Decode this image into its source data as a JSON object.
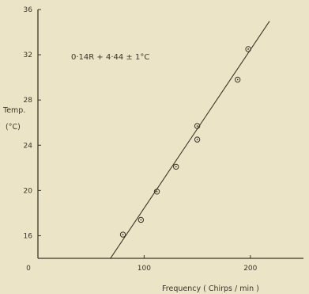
{
  "chart_data": {
    "type": "scatter",
    "xlabel": "Frequency   ( Chirps / min )",
    "ylabel": [
      "Temp.",
      "(°C)"
    ],
    "annotation": "0·14R + 4·44  ±  1°C",
    "x_ticks": [
      "0",
      "100",
      "200"
    ],
    "y_ticks": [
      "16",
      "20",
      "24",
      "28",
      "32",
      "36"
    ],
    "xlim": [
      0,
      250
    ],
    "ylim": [
      14,
      36
    ],
    "grid": false,
    "points": [
      {
        "x": 80,
        "y": 16.1
      },
      {
        "x": 97,
        "y": 17.4
      },
      {
        "x": 112,
        "y": 19.9
      },
      {
        "x": 130,
        "y": 22.1
      },
      {
        "x": 150,
        "y": 24.5
      },
      {
        "x": 150,
        "y": 25.7
      },
      {
        "x": 188,
        "y": 29.8
      },
      {
        "x": 198,
        "y": 32.5
      }
    ],
    "fit_line": {
      "slope": 0.14,
      "intercept": 4.44,
      "x_start": 68,
      "x_end": 218
    },
    "colors": {
      "background": "#ece4c6",
      "ink": "#3a3428"
    }
  }
}
